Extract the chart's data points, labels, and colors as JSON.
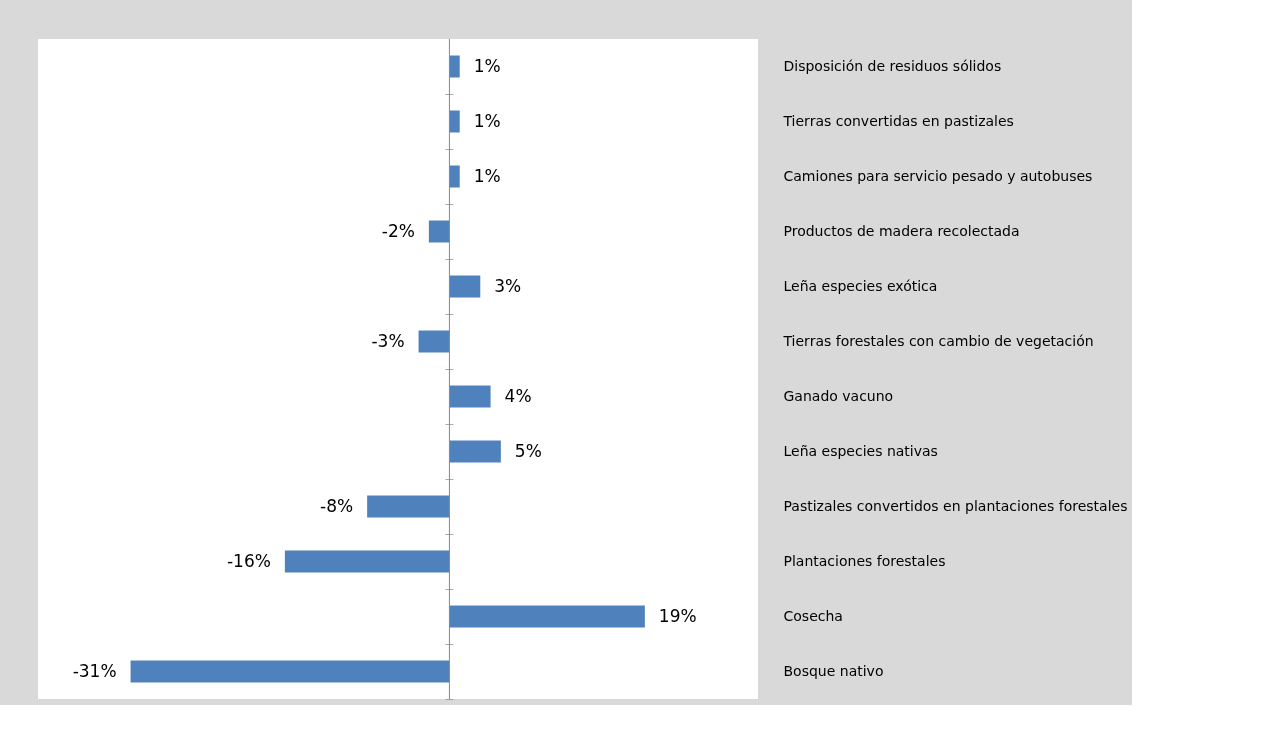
{
  "chart_data": {
    "type": "bar",
    "orientation": "horizontal",
    "categories": [
      "Disposición de residuos sólidos",
      "Tierras convertidas en pastizales",
      "Camiones para servicio pesado y autobuses",
      "Productos de madera recolectada",
      "Leña especies exótica",
      "Tierras forestales con cambio de vegetación",
      "Ganado vacuno",
      "Leña especies nativas",
      "Pastizales convertidos en plantaciones forestales",
      "Plantaciones forestales",
      "Cosecha",
      "Bosque nativo"
    ],
    "values": [
      1,
      1,
      1,
      -2,
      3,
      -3,
      4,
      5,
      -8,
      -16,
      19,
      -31
    ],
    "value_labels": [
      "1%",
      "1%",
      "1%",
      "-2%",
      "3%",
      "-3%",
      "4%",
      "5%",
      "-8%",
      "-16%",
      "19%",
      "-31%"
    ],
    "color": "#4f81bd",
    "xlim": [
      -40,
      30
    ],
    "grid": false,
    "tick_labels": "y"
  }
}
